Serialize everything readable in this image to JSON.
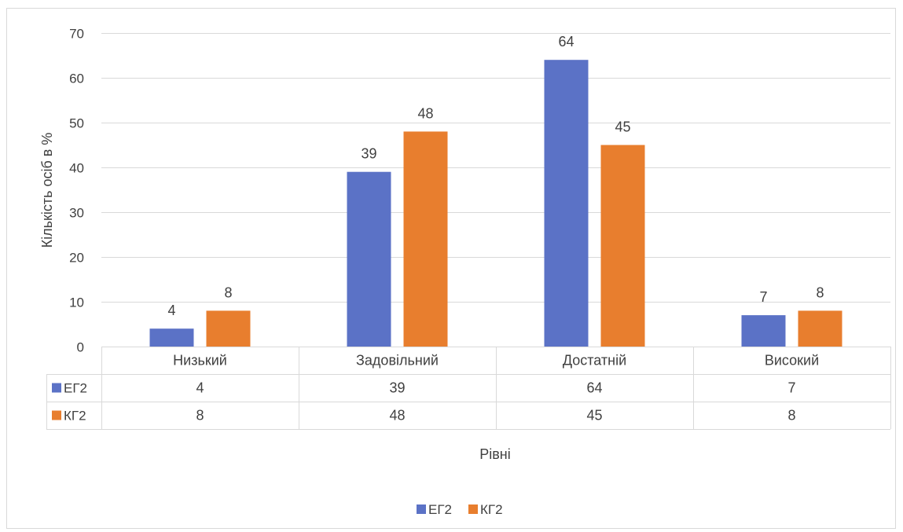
{
  "chart_data": {
    "type": "bar",
    "title": "",
    "xlabel": "Рівні",
    "ylabel": "Кількість осіб в %",
    "ylim": [
      0,
      70
    ],
    "yticks": [
      0,
      10,
      20,
      30,
      40,
      50,
      60,
      70
    ],
    "categories": [
      "Низький",
      "Задовільний",
      "Достатній",
      "Високий"
    ],
    "series": [
      {
        "name": "ЕГ2",
        "color": "#5b72c6",
        "values": [
          4,
          39,
          64,
          7
        ]
      },
      {
        "name": "КГ2",
        "color": "#e87e2e",
        "values": [
          8,
          48,
          45,
          8
        ]
      }
    ],
    "grid": true,
    "legend_position": "bottom",
    "data_table": true
  }
}
